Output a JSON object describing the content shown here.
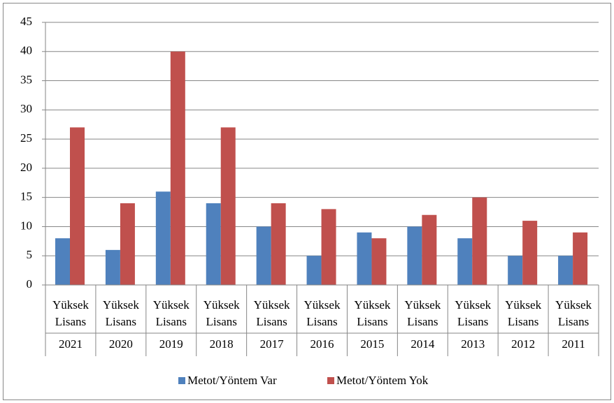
{
  "chart_data": {
    "type": "bar",
    "categories": [
      "Yüksek Lisans",
      "Yüksek Lisans",
      "Yüksek Lisans",
      "Yüksek Lisans",
      "Yüksek Lisans",
      "Yüksek Lisans",
      "Yüksek Lisans",
      "Yüksek Lisans",
      "Yüksek Lisans",
      "Yüksek Lisans",
      "Yüksek Lisans"
    ],
    "category_groups": [
      "2021",
      "2020",
      "2019",
      "2018",
      "2017",
      "2016",
      "2015",
      "2014",
      "2013",
      "2012",
      "2011"
    ],
    "series": [
      {
        "name": "Metot/Yöntem Var",
        "color": "#4f81bd",
        "values": [
          8,
          6,
          16,
          14,
          10,
          5,
          9,
          10,
          8,
          5,
          5
        ]
      },
      {
        "name": "Metot/Yöntem Yok",
        "color": "#c0504d",
        "values": [
          27,
          14,
          40,
          27,
          14,
          13,
          8,
          12,
          15,
          11,
          9
        ]
      }
    ],
    "ylim": [
      0,
      45
    ],
    "yticks": [
      0,
      5,
      10,
      15,
      20,
      25,
      30,
      35,
      40,
      45
    ],
    "grid": true,
    "legend": "bottom"
  }
}
